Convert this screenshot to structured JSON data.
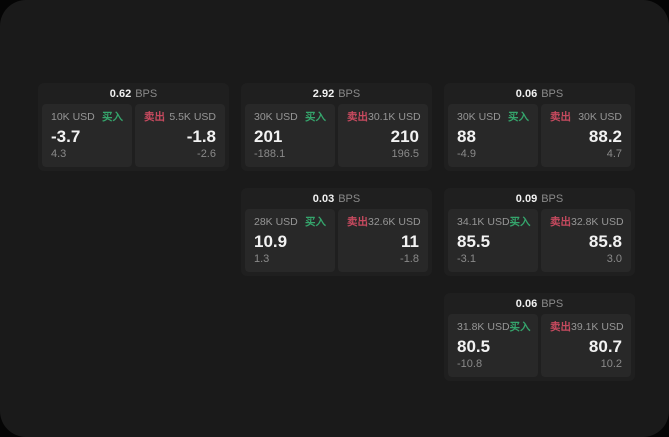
{
  "colors": {
    "page-bg": "#050505",
    "window-bg": "#1a1a1a",
    "card-bg": "#1f1f1f",
    "panel-bg": "#282828",
    "text-primary": "#f2f2f2",
    "text-muted": "#969696",
    "text-dim": "#8a8a8a",
    "buy": "#35a56c",
    "sell": "#c74a5f"
  },
  "labels": {
    "bps_suffix": "BPS",
    "buy": "买入",
    "sell": "卖出"
  },
  "cards": [
    {
      "bps": "0.62",
      "col": 1,
      "row": 1,
      "buy": {
        "amount": "10K USD",
        "value": "-3.7",
        "delta": "4.3"
      },
      "sell": {
        "amount": "5.5K USD",
        "value": "-1.8",
        "delta": "-2.6"
      }
    },
    {
      "bps": "2.92",
      "col": 2,
      "row": 1,
      "buy": {
        "amount": "30K USD",
        "value": "201",
        "delta": "-188.1"
      },
      "sell": {
        "amount": "30.1K USD",
        "value": "210",
        "delta": "196.5"
      }
    },
    {
      "bps": "0.06",
      "col": 3,
      "row": 1,
      "buy": {
        "amount": "30K USD",
        "value": "88",
        "delta": "-4.9"
      },
      "sell": {
        "amount": "30K USD",
        "value": "88.2",
        "delta": "4.7"
      }
    },
    {
      "bps": "0.03",
      "col": 2,
      "row": 2,
      "buy": {
        "amount": "28K USD",
        "value": "10.9",
        "delta": "1.3"
      },
      "sell": {
        "amount": "32.6K USD",
        "value": "11",
        "delta": "-1.8"
      }
    },
    {
      "bps": "0.09",
      "col": 3,
      "row": 2,
      "buy": {
        "amount": "34.1K USD",
        "value": "85.5",
        "delta": "-3.1"
      },
      "sell": {
        "amount": "32.8K USD",
        "value": "85.8",
        "delta": "3.0"
      }
    },
    {
      "bps": "0.06",
      "col": 3,
      "row": 3,
      "buy": {
        "amount": "31.8K USD",
        "value": "80.5",
        "delta": "-10.8"
      },
      "sell": {
        "amount": "39.1K USD",
        "value": "80.7",
        "delta": "10.2"
      }
    }
  ]
}
